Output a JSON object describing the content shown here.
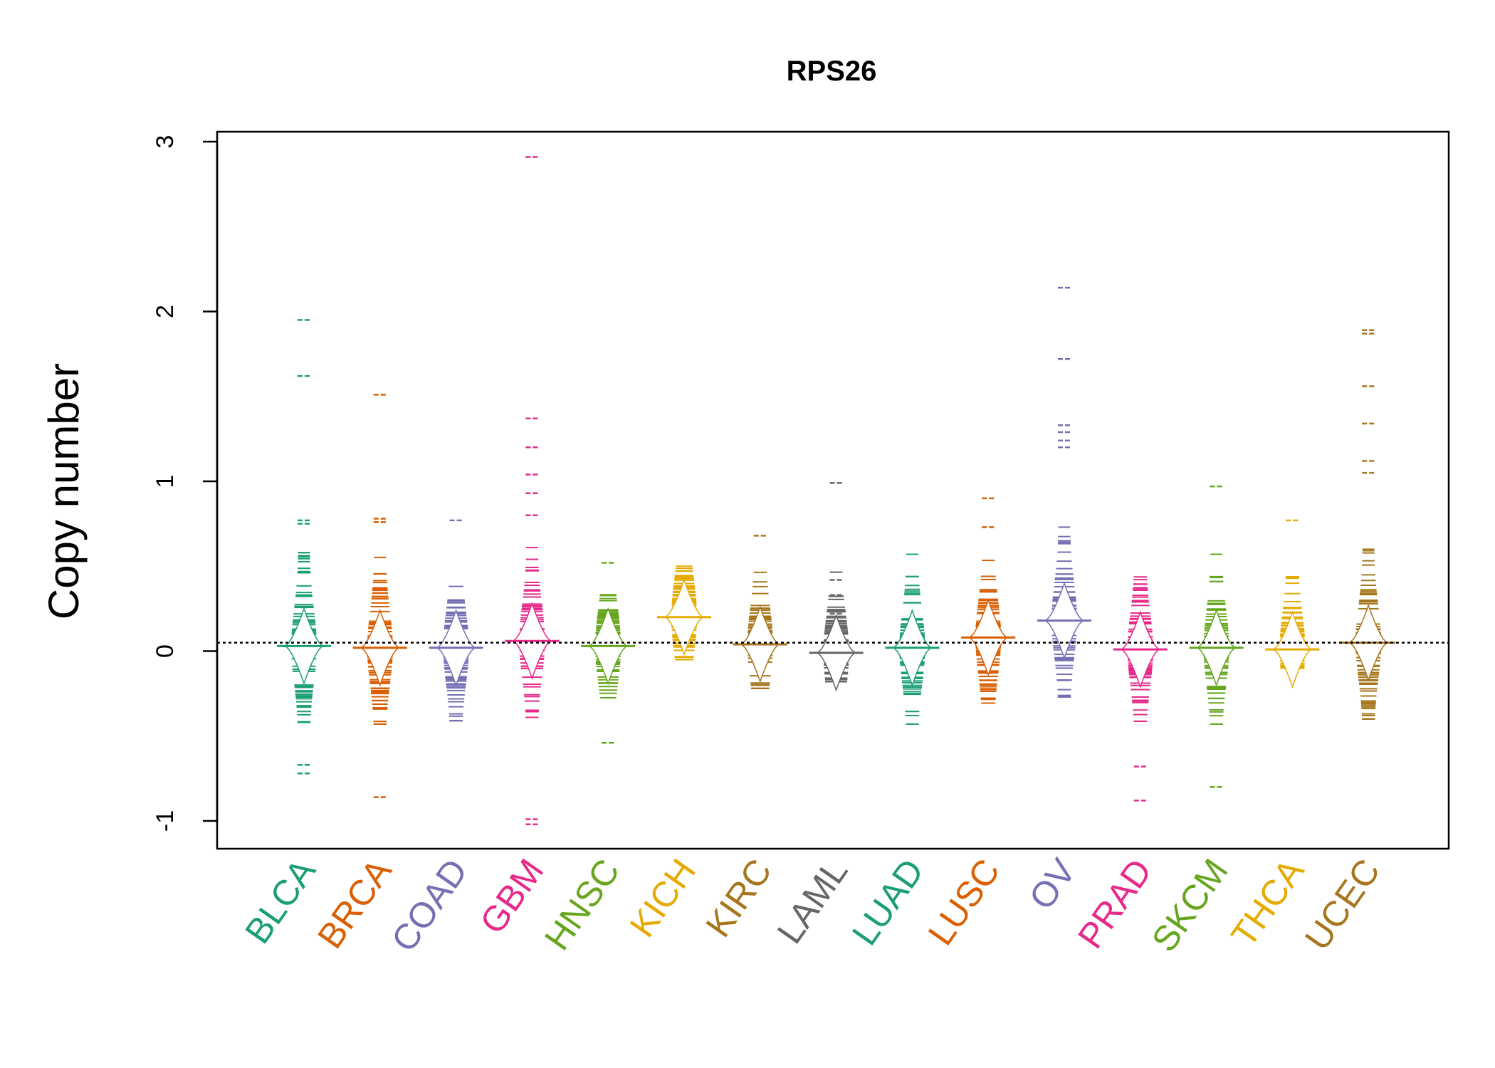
{
  "chart_data": {
    "type": "beanplot",
    "title": "RPS26",
    "xlabel": "",
    "ylabel": "Copy number",
    "ylim": [
      -1.15,
      3.05
    ],
    "yticks": [
      -1,
      0,
      1,
      2,
      3
    ],
    "ytick_labels": [
      "-1",
      "0",
      "1",
      "2",
      "3"
    ],
    "reference_line": 0.05,
    "grid": false,
    "legend": "none",
    "categories": [
      "BLCA",
      "BRCA",
      "COAD",
      "GBM",
      "HNSC",
      "KICH",
      "KIRC",
      "LAML",
      "LUAD",
      "LUSC",
      "OV",
      "PRAD",
      "SKCM",
      "THCA",
      "UCEC"
    ],
    "colors": [
      "#1b9e77",
      "#d95f02",
      "#7570b3",
      "#e7298a",
      "#66a61e",
      "#e6ab02",
      "#a6761d",
      "#666666",
      "#1b9e77",
      "#d95f02",
      "#7570b3",
      "#e7298a",
      "#66a61e",
      "#e6ab02",
      "#a6761d"
    ],
    "series": [
      {
        "category": "BLCA",
        "median": 0.03,
        "min": -0.72,
        "max": 1.95,
        "outliers": [
          1.95,
          1.62,
          0.77,
          0.75,
          -0.67,
          -0.72
        ]
      },
      {
        "category": "BRCA",
        "median": 0.02,
        "min": -0.86,
        "max": 1.51,
        "outliers": [
          1.51,
          0.78,
          0.76,
          -0.86
        ]
      },
      {
        "category": "COAD",
        "median": 0.02,
        "min": -0.41,
        "max": 0.77,
        "outliers": [
          0.77
        ]
      },
      {
        "category": "GBM",
        "median": 0.06,
        "min": -1.02,
        "max": 2.91,
        "outliers": [
          2.91,
          1.37,
          1.2,
          1.04,
          0.93,
          0.8,
          -0.99,
          -1.02
        ]
      },
      {
        "category": "HNSC",
        "median": 0.03,
        "min": -0.54,
        "max": 0.52,
        "outliers": [
          0.52,
          -0.54
        ]
      },
      {
        "category": "KICH",
        "median": 0.2,
        "min": -0.05,
        "max": 0.5,
        "outliers": []
      },
      {
        "category": "KIRC",
        "median": 0.04,
        "min": -0.22,
        "max": 0.68,
        "outliers": [
          0.68
        ]
      },
      {
        "category": "LAML",
        "median": -0.01,
        "min": -0.18,
        "max": 0.99,
        "outliers": [
          0.99,
          0.42,
          0.33,
          0.22
        ]
      },
      {
        "category": "LUAD",
        "median": 0.02,
        "min": -0.43,
        "max": 0.78,
        "outliers": []
      },
      {
        "category": "LUSC",
        "median": 0.08,
        "min": -0.43,
        "max": 0.9,
        "outliers": [
          0.9,
          0.73
        ]
      },
      {
        "category": "OV",
        "median": 0.18,
        "min": -0.7,
        "max": 2.14,
        "outliers": [
          2.14,
          1.72,
          1.33,
          1.29,
          1.24,
          1.2
        ]
      },
      {
        "category": "PRAD",
        "median": 0.01,
        "min": -0.88,
        "max": 0.5,
        "outliers": [
          -0.68,
          -0.88
        ]
      },
      {
        "category": "SKCM",
        "median": 0.02,
        "min": -0.8,
        "max": 0.97,
        "outliers": [
          0.97,
          -0.8
        ]
      },
      {
        "category": "THCA",
        "median": 0.01,
        "min": -0.1,
        "max": 0.77,
        "outliers": [
          0.77
        ]
      },
      {
        "category": "UCEC",
        "median": 0.05,
        "min": -0.44,
        "max": 1.89,
        "outliers": [
          1.89,
          1.87,
          1.56,
          1.34,
          1.12,
          1.05
        ]
      }
    ]
  }
}
